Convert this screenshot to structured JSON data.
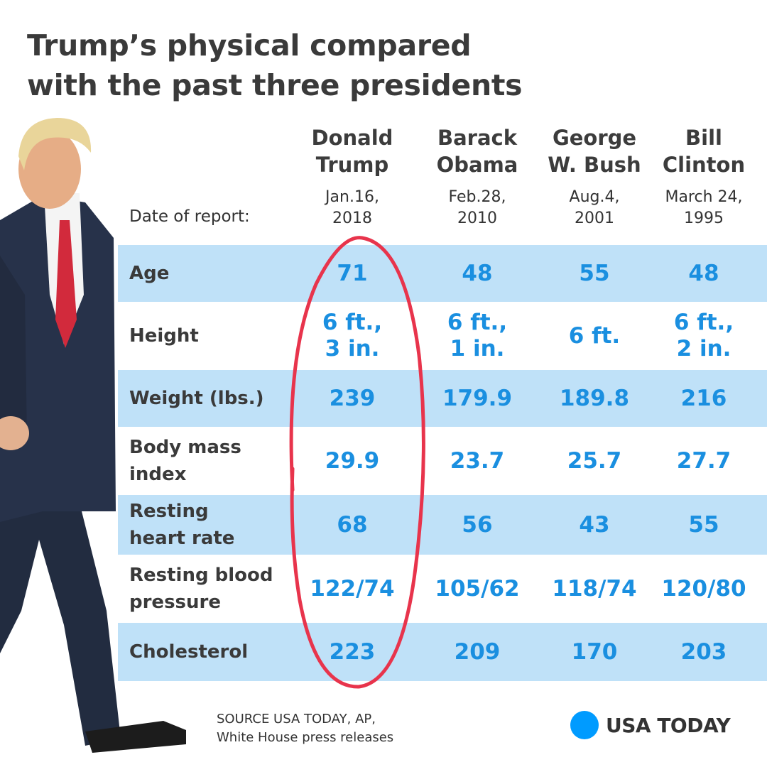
{
  "title": {
    "line1": "Trump’s physical compared",
    "line2": "with the past three presidents"
  },
  "date_label": "Date of report:",
  "presidents": [
    {
      "name": [
        "Donald",
        "Trump"
      ],
      "date": [
        "Jan.16,",
        "2018"
      ]
    },
    {
      "name": [
        "Barack",
        "Obama"
      ],
      "date": [
        "Feb.28,",
        "2010"
      ]
    },
    {
      "name": [
        "George",
        "W. Bush"
      ],
      "date": [
        "Aug.4,",
        "2001"
      ]
    },
    {
      "name": [
        "Bill",
        "Clinton"
      ],
      "date": [
        "March 24,",
        "1995"
      ]
    }
  ],
  "chart_data": {
    "type": "table",
    "title": "Trump’s physical compared with the past three presidents",
    "columns": [
      "Donald Trump",
      "Barack Obama",
      "George W. Bush",
      "Bill Clinton"
    ],
    "rows": [
      {
        "label": [
          "Age"
        ],
        "values": [
          [
            "71"
          ],
          [
            "48"
          ],
          [
            "55"
          ],
          [
            "48"
          ]
        ]
      },
      {
        "label": [
          "Height"
        ],
        "values": [
          [
            "6 ft.,",
            "3 in."
          ],
          [
            "6 ft.,",
            "1 in."
          ],
          [
            "6 ft."
          ],
          [
            "6 ft.,",
            "2 in."
          ]
        ]
      },
      {
        "label": [
          "Weight (lbs.)"
        ],
        "values": [
          [
            "239"
          ],
          [
            "179.9"
          ],
          [
            "189.8"
          ],
          [
            "216"
          ]
        ]
      },
      {
        "label": [
          "Body mass",
          "index"
        ],
        "values": [
          [
            "29.9"
          ],
          [
            "23.7"
          ],
          [
            "25.7"
          ],
          [
            "27.7"
          ]
        ]
      },
      {
        "label": [
          "Resting",
          "heart rate"
        ],
        "values": [
          [
            "68"
          ],
          [
            "56"
          ],
          [
            "43"
          ],
          [
            "55"
          ]
        ]
      },
      {
        "label": [
          "Resting blood",
          "pressure"
        ],
        "values": [
          [
            "122/74"
          ],
          [
            "105/62"
          ],
          [
            "118/74"
          ],
          [
            "120/80"
          ]
        ]
      },
      {
        "label": [
          "Cholesterol"
        ],
        "values": [
          [
            "223"
          ],
          [
            "209"
          ],
          [
            "170"
          ],
          [
            "203"
          ]
        ]
      }
    ],
    "highlighted_column": "Donald Trump"
  },
  "source": {
    "line1": "SOURCE USA TODAY, AP,",
    "line2": "White House press releases"
  },
  "logo": {
    "text": "USA TODAY"
  },
  "colors": {
    "band": "#bfe1f8",
    "value": "#1a8fe0",
    "circle": "#e8344c",
    "logo_dot": "#009bff"
  }
}
